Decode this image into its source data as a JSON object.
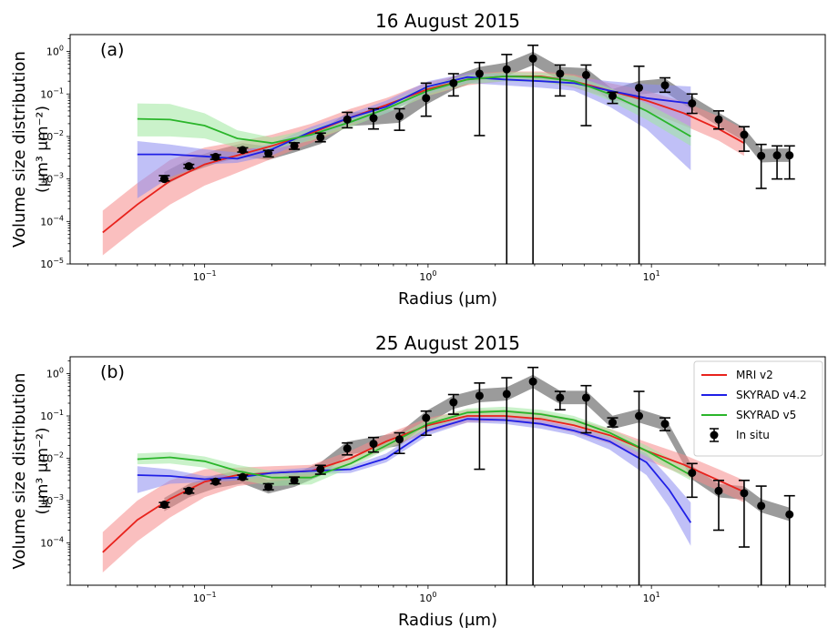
{
  "chart_data": [
    {
      "type": "line",
      "title": "16 August 2015",
      "panel_label": "(a)",
      "xlabel": "Radius (μm)",
      "ylabel_line1": "Volume size distribution",
      "ylabel_line2_sup": "(μm³ μm⁻²)",
      "x_scale": "log",
      "y_scale": "log",
      "xlim": [
        0.025,
        60
      ],
      "ylim": [
        1e-05,
        2.5
      ],
      "x_ticks": [
        {
          "value": 0.1,
          "base": "10",
          "exp": "−1"
        },
        {
          "value": 1,
          "base": "10",
          "exp": "0"
        },
        {
          "value": 10,
          "base": "10",
          "exp": "1"
        }
      ],
      "y_ticks": [
        {
          "value": 1e-05,
          "base": "10",
          "exp": "−5"
        },
        {
          "value": 0.0001,
          "base": "10",
          "exp": "−4"
        },
        {
          "value": 0.001,
          "base": "10",
          "exp": "−3"
        },
        {
          "value": 0.01,
          "base": "10",
          "exp": "−2"
        },
        {
          "value": 0.1,
          "base": "10",
          "exp": "−1"
        },
        {
          "value": 1,
          "base": "10",
          "exp": "0"
        }
      ],
      "legend": null,
      "series": [
        {
          "name": "MRI v2",
          "color": "#e8221c",
          "band": "#f58a8a",
          "x": [
            0.035,
            0.05,
            0.07,
            0.1,
            0.14,
            0.2,
            0.3,
            0.45,
            0.65,
            1.0,
            1.5,
            2.2,
            3.2,
            4.5,
            6.5,
            9.5,
            14,
            20,
            26
          ],
          "y": [
            5.5e-05,
            0.00025,
            0.0009,
            0.0022,
            0.0036,
            0.006,
            0.012,
            0.028,
            0.055,
            0.13,
            0.22,
            0.26,
            0.26,
            0.2,
            0.12,
            0.07,
            0.035,
            0.015,
            0.007
          ],
          "lower": [
            1.6e-05,
            7e-05,
            0.00025,
            0.0007,
            0.0014,
            0.003,
            0.007,
            0.018,
            0.038,
            0.09,
            0.16,
            0.2,
            0.2,
            0.14,
            0.08,
            0.04,
            0.018,
            0.008,
            0.0035
          ],
          "upper": [
            0.00018,
            0.0008,
            0.0028,
            0.0055,
            0.0075,
            0.011,
            0.02,
            0.045,
            0.08,
            0.19,
            0.3,
            0.34,
            0.34,
            0.29,
            0.18,
            0.12,
            0.065,
            0.03,
            0.015
          ]
        },
        {
          "name": "SKYRAD v4.2",
          "color": "#1f1fe6",
          "band": "#8c8cf0",
          "x": [
            0.05,
            0.07,
            0.1,
            0.14,
            0.2,
            0.3,
            0.45,
            0.65,
            1.0,
            1.5,
            2.2,
            3.2,
            4.5,
            6.5,
            9.5,
            15
          ],
          "y": [
            0.0038,
            0.0038,
            0.0034,
            0.003,
            0.005,
            0.013,
            0.028,
            0.05,
            0.15,
            0.25,
            0.22,
            0.2,
            0.18,
            0.12,
            0.08,
            0.06
          ],
          "lower": [
            0.00035,
            0.0011,
            0.0022,
            0.0024,
            0.0036,
            0.009,
            0.02,
            0.035,
            0.1,
            0.18,
            0.16,
            0.14,
            0.12,
            0.05,
            0.015,
            0.0016
          ],
          "upper": [
            0.0078,
            0.0065,
            0.005,
            0.0042,
            0.007,
            0.017,
            0.035,
            0.07,
            0.2,
            0.31,
            0.3,
            0.26,
            0.25,
            0.2,
            0.17,
            0.15
          ]
        },
        {
          "name": "SKYRAD v5",
          "color": "#2ab52a",
          "band": "#9ee89e",
          "x": [
            0.05,
            0.07,
            0.1,
            0.14,
            0.2,
            0.3,
            0.45,
            0.65,
            1.0,
            1.5,
            2.2,
            3.2,
            4.5,
            6.5,
            9.5,
            15
          ],
          "y": [
            0.026,
            0.025,
            0.018,
            0.009,
            0.007,
            0.011,
            0.022,
            0.045,
            0.12,
            0.22,
            0.26,
            0.25,
            0.2,
            0.1,
            0.04,
            0.01
          ],
          "lower": [
            0.01,
            0.01,
            0.009,
            0.0055,
            0.005,
            0.008,
            0.017,
            0.035,
            0.09,
            0.17,
            0.2,
            0.19,
            0.15,
            0.07,
            0.025,
            0.006
          ],
          "upper": [
            0.06,
            0.058,
            0.035,
            0.014,
            0.0095,
            0.015,
            0.028,
            0.058,
            0.16,
            0.28,
            0.33,
            0.32,
            0.27,
            0.14,
            0.06,
            0.017
          ]
        }
      ],
      "in_situ": {
        "name": "In situ",
        "color": "#000000",
        "band": "#8a8a8a",
        "x": [
          0.066,
          0.085,
          0.112,
          0.148,
          0.193,
          0.252,
          0.33,
          0.435,
          0.57,
          0.745,
          0.98,
          1.3,
          1.7,
          2.25,
          2.95,
          3.9,
          5.1,
          6.7,
          8.8,
          11.5,
          15.2,
          20,
          26,
          31,
          36.5,
          41.5
        ],
        "y": [
          0.001,
          0.002,
          0.0033,
          0.0048,
          0.004,
          0.006,
          0.0095,
          0.025,
          0.027,
          0.03,
          0.08,
          0.18,
          0.3,
          0.38,
          0.68,
          0.3,
          0.28,
          0.09,
          0.14,
          0.16,
          0.06,
          0.025,
          0.011,
          0.0035,
          0.0036,
          0.0036
        ],
        "lower": [
          0.0009,
          0.0018,
          0.0029,
          0.0043,
          0.0033,
          0.005,
          0.0075,
          0.016,
          0.015,
          0.014,
          0.03,
          0.09,
          0.0105,
          1e-06,
          1e-06,
          0.09,
          0.018,
          0.06,
          1e-06,
          0.11,
          0.035,
          0.015,
          0.0045,
          0.0006,
          0.001,
          0.001
        ],
        "upper": [
          0.0012,
          0.0022,
          0.0037,
          0.0054,
          0.0047,
          0.0071,
          0.012,
          0.037,
          0.045,
          0.045,
          0.18,
          0.3,
          0.55,
          0.85,
          1.4,
          0.48,
          0.48,
          0.11,
          0.45,
          0.24,
          0.1,
          0.04,
          0.017,
          0.0065,
          0.006,
          0.006
        ]
      }
    },
    {
      "type": "line",
      "title": "25 August 2015",
      "panel_label": "(b)",
      "xlabel": "Radius (μm)",
      "ylabel_line1": "Volume size distribution",
      "ylabel_line2_sup": "(μm³ μm⁻²)",
      "x_scale": "log",
      "y_scale": "log",
      "xlim": [
        0.025,
        60
      ],
      "ylim": [
        1e-05,
        2.5
      ],
      "x_ticks": [
        {
          "value": 0.1,
          "base": "10",
          "exp": "−1"
        },
        {
          "value": 1,
          "base": "10",
          "exp": "0"
        },
        {
          "value": 10,
          "base": "10",
          "exp": "1"
        }
      ],
      "y_ticks": [
        {
          "value": 0.0001,
          "base": "10",
          "exp": "−4"
        },
        {
          "value": 0.001,
          "base": "10",
          "exp": "−3"
        },
        {
          "value": 0.01,
          "base": "10",
          "exp": "−2"
        },
        {
          "value": 0.1,
          "base": "10",
          "exp": "−1"
        },
        {
          "value": 1,
          "base": "10",
          "exp": "0"
        }
      ],
      "legend": "top-right",
      "series": [
        {
          "name": "MRI v2",
          "color": "#e8221c",
          "band": "#f58a8a",
          "x": [
            0.035,
            0.05,
            0.07,
            0.1,
            0.14,
            0.2,
            0.3,
            0.45,
            0.65,
            1.0,
            1.5,
            2.2,
            3.2,
            4.5,
            6.5,
            9.5,
            14,
            20,
            26
          ],
          "y": [
            6e-05,
            0.00035,
            0.0011,
            0.0028,
            0.004,
            0.0045,
            0.005,
            0.01,
            0.025,
            0.06,
            0.1,
            0.1,
            0.085,
            0.06,
            0.035,
            0.015,
            0.007,
            0.003,
            0.0016
          ],
          "lower": [
            2e-05,
            0.00011,
            0.0004,
            0.0012,
            0.0022,
            0.0028,
            0.0035,
            0.007,
            0.017,
            0.04,
            0.07,
            0.075,
            0.06,
            0.04,
            0.022,
            0.009,
            0.004,
            0.0017,
            0.0009
          ],
          "upper": [
            0.00018,
            0.001,
            0.003,
            0.0055,
            0.006,
            0.0065,
            0.007,
            0.015,
            0.037,
            0.09,
            0.14,
            0.14,
            0.12,
            0.085,
            0.05,
            0.024,
            0.012,
            0.0055,
            0.003
          ]
        },
        {
          "name": "SKYRAD v4.2",
          "color": "#1f1fe6",
          "band": "#8c8cf0",
          "x": [
            0.05,
            0.07,
            0.1,
            0.14,
            0.2,
            0.3,
            0.45,
            0.65,
            1.0,
            1.5,
            2.2,
            3.2,
            4.5,
            6.5,
            9.5,
            12,
            15
          ],
          "y": [
            0.004,
            0.0038,
            0.0032,
            0.0035,
            0.0045,
            0.005,
            0.0055,
            0.01,
            0.045,
            0.085,
            0.08,
            0.065,
            0.045,
            0.025,
            0.008,
            0.0018,
            0.0003
          ],
          "lower": [
            0.0015,
            0.0025,
            0.0027,
            0.003,
            0.0038,
            0.0042,
            0.0045,
            0.008,
            0.035,
            0.07,
            0.065,
            0.05,
            0.035,
            0.016,
            0.004,
            0.0007,
            8.5e-05
          ],
          "upper": [
            0.0065,
            0.0055,
            0.0038,
            0.0041,
            0.0052,
            0.006,
            0.0065,
            0.013,
            0.058,
            0.1,
            0.095,
            0.08,
            0.055,
            0.033,
            0.013,
            0.0035,
            0.0009
          ]
        },
        {
          "name": "SKYRAD v5",
          "color": "#2ab52a",
          "band": "#9ee89e",
          "x": [
            0.05,
            0.07,
            0.1,
            0.14,
            0.2,
            0.3,
            0.45,
            0.65,
            1.0,
            1.5,
            2.2,
            3.2,
            4.5,
            6.5,
            9.5,
            15
          ],
          "y": [
            0.0095,
            0.0105,
            0.0085,
            0.005,
            0.0035,
            0.0035,
            0.0075,
            0.02,
            0.065,
            0.12,
            0.13,
            0.11,
            0.08,
            0.04,
            0.015,
            0.004
          ],
          "lower": [
            0.0072,
            0.0075,
            0.006,
            0.0032,
            0.0022,
            0.0024,
            0.006,
            0.016,
            0.05,
            0.095,
            0.1,
            0.085,
            0.06,
            0.03,
            0.011,
            0.003
          ],
          "upper": [
            0.013,
            0.014,
            0.011,
            0.007,
            0.005,
            0.0048,
            0.0095,
            0.025,
            0.082,
            0.15,
            0.165,
            0.14,
            0.1,
            0.05,
            0.02,
            0.0055
          ]
        }
      ],
      "in_situ": {
        "name": "In situ",
        "color": "#000000",
        "band": "#8a8a8a",
        "x": [
          0.066,
          0.085,
          0.112,
          0.148,
          0.193,
          0.252,
          0.33,
          0.435,
          0.57,
          0.745,
          0.98,
          1.3,
          1.7,
          2.25,
          2.95,
          3.9,
          5.1,
          6.7,
          8.8,
          11.5,
          15.2,
          20,
          26,
          31,
          41.5
        ],
        "y": [
          0.0008,
          0.0017,
          0.0028,
          0.0036,
          0.0021,
          0.003,
          0.0055,
          0.017,
          0.022,
          0.028,
          0.09,
          0.21,
          0.3,
          0.33,
          0.65,
          0.27,
          0.27,
          0.07,
          0.1,
          0.065,
          0.0045,
          0.0017,
          0.0015,
          0.00075,
          0.00047
        ],
        "lower": [
          0.0007,
          0.0015,
          0.0025,
          0.0032,
          0.0018,
          0.0025,
          0.0042,
          0.012,
          0.014,
          0.013,
          0.035,
          0.11,
          0.0055,
          1e-06,
          1e-06,
          0.14,
          0.04,
          0.055,
          1e-06,
          0.045,
          0.0012,
          0.0002,
          8e-05,
          1e-06,
          1e-06
        ],
        "upper": [
          0.0009,
          0.0019,
          0.0031,
          0.004,
          0.0025,
          0.0036,
          0.0068,
          0.023,
          0.031,
          0.04,
          0.13,
          0.32,
          0.6,
          0.8,
          1.4,
          0.38,
          0.52,
          0.09,
          0.38,
          0.09,
          0.0075,
          0.003,
          0.003,
          0.0022,
          0.0013
        ]
      }
    }
  ]
}
